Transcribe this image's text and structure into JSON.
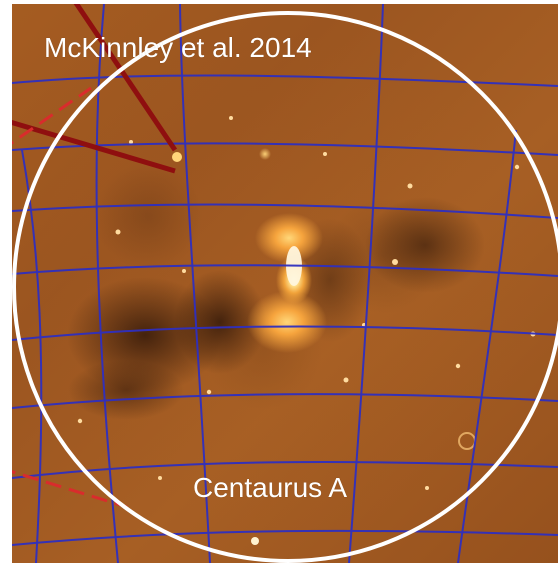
{
  "image": {
    "citation": "McKinnley et al. 2014",
    "label": "Centaurus A",
    "colors": {
      "circle": "#ffffff",
      "grid": "#2f2fbf",
      "pointer": "#8f0f0f",
      "dashed": "#d92c2c"
    }
  }
}
